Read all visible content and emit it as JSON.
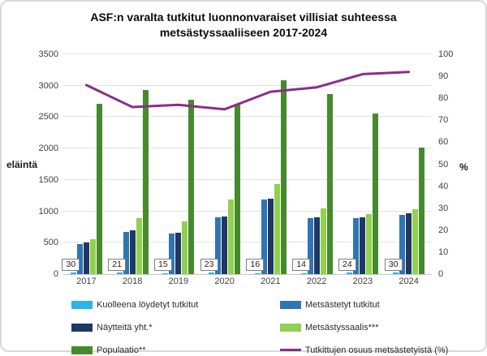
{
  "window": {
    "background_color": "#FFFFFF",
    "border_color": "#D8D8D8"
  },
  "chart_data": {
    "type": "bar+line",
    "title": "ASF:n varalta tutkitut luonnonvaraiset villisiat suhteessa metsästyssaaliiseen 2017-2024",
    "categories": [
      "2017",
      "2018",
      "2019",
      "2020",
      "2021",
      "2022",
      "2023",
      "2024"
    ],
    "bar_series": [
      {
        "name": "Kuolleena löydetyt tutkitut",
        "color": "#29B5E8",
        "values": [
          30,
          21,
          15,
          23,
          16,
          14,
          24,
          30
        ],
        "show_data_labels": true
      },
      {
        "name": "Metsästetyt tutkitut",
        "color": "#2E75B6",
        "values": [
          480,
          675,
          645,
          900,
          1190,
          890,
          885,
          945
        ]
      },
      {
        "name": "Näytteitä yht.*",
        "color": "#1F3864",
        "values": [
          510,
          696,
          660,
          923,
          1206,
          904,
          909,
          975
        ]
      },
      {
        "name": "Metsästyssaalis***",
        "color": "#92D050",
        "values": [
          560,
          890,
          840,
          1190,
          1440,
          1050,
          960,
          1030
        ]
      },
      {
        "name": "Populaatio**",
        "color": "#468A2D",
        "values": [
          2710,
          2930,
          2780,
          2700,
          3090,
          2870,
          2560,
          2010
        ]
      }
    ],
    "line_series": {
      "name": "Tutkittujen osuus metsästetyistä (%)",
      "color": "#8C2D87",
      "values": [
        86,
        76,
        77,
        75,
        83,
        85,
        91,
        92
      ]
    },
    "axis_left": {
      "title": "eläintä",
      "min": 0,
      "max": 3500,
      "step": 500
    },
    "axis_right": {
      "title": "%",
      "min": 0,
      "max": 100,
      "step": 10
    },
    "grid": true,
    "legend_position": "bottom"
  }
}
